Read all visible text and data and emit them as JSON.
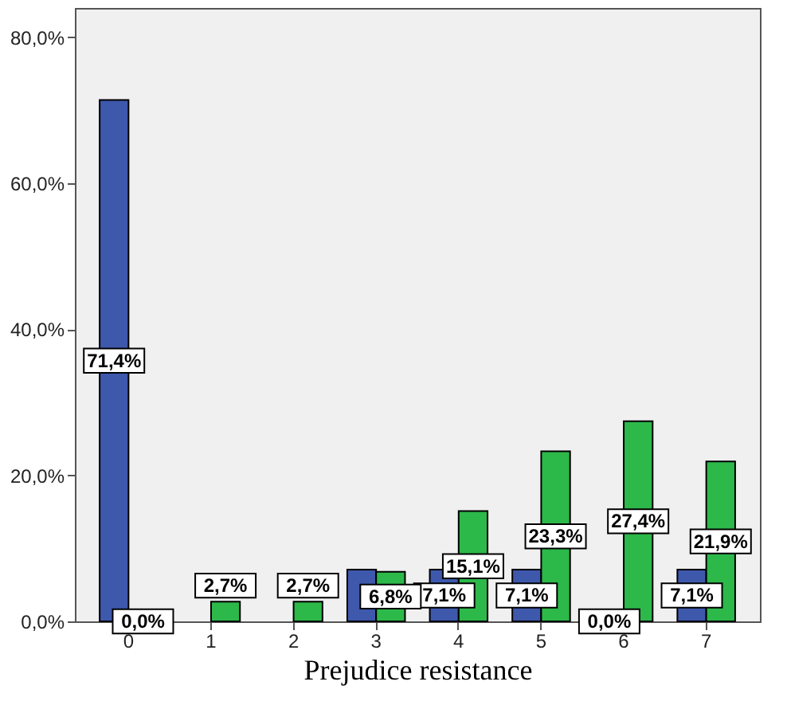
{
  "chart_data": {
    "type": "bar",
    "xlabel": "Prejudice resistance",
    "categories": [
      "0",
      "1",
      "2",
      "3",
      "4",
      "5",
      "6",
      "7"
    ],
    "series": [
      {
        "color": "#3e58ac",
        "values": [
          71.4,
          null,
          null,
          7.1,
          7.1,
          7.1,
          0.0,
          7.1
        ],
        "value_labels": [
          "71,4%",
          null,
          null,
          null,
          "7,1%",
          "7,1%",
          "0,0%",
          "7,1%"
        ]
      },
      {
        "color": "#2db84a",
        "values": [
          0.0,
          2.7,
          2.7,
          6.8,
          15.1,
          23.3,
          27.4,
          21.9
        ],
        "value_labels": [
          "0,0%",
          "2,7%",
          "2,7%",
          "6,8%",
          "15,1%",
          "23,3%",
          "27,4%",
          "21,9%"
        ]
      }
    ],
    "ylim": [
      0,
      84
    ],
    "yticks": [
      {
        "value": 0,
        "label": "0,0%"
      },
      {
        "value": 20,
        "label": "20,0%"
      },
      {
        "value": 40,
        "label": "40,0%"
      },
      {
        "value": 60,
        "label": "60,0%"
      },
      {
        "value": 80,
        "label": "80,0%"
      }
    ],
    "grid": false,
    "legend": false
  }
}
